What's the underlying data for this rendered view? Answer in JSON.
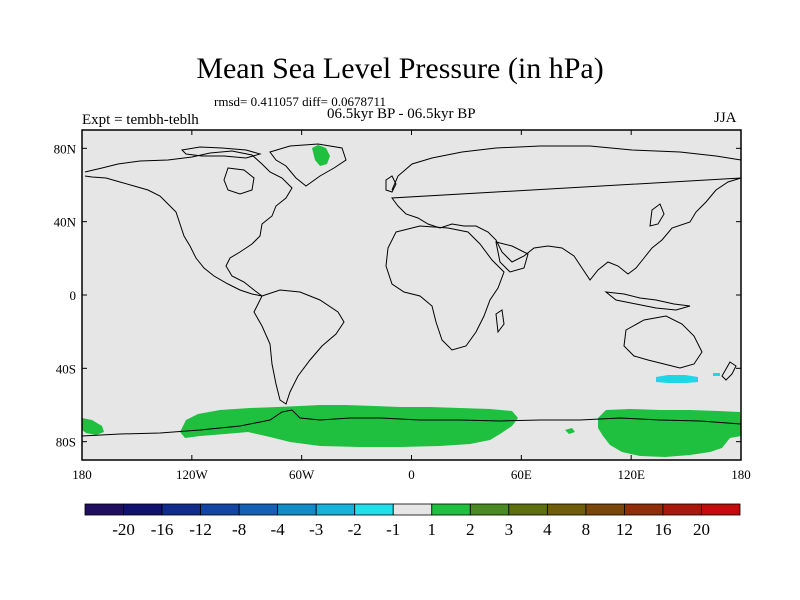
{
  "header": {
    "title": "Mean Sea Level Pressure (in hPa)",
    "stats": "rmsd= 0.411057 diff= 0.0678711",
    "experiment": "Expt = tembh-teblh",
    "period": "06.5kyr BP - 06.5kyr BP",
    "season": "JJA"
  },
  "map": {
    "projection": "cylindrical equidistant",
    "lon_range": [
      -180,
      180
    ],
    "lat_range": [
      -90,
      90
    ],
    "background_color": "#e6e6e6",
    "coastline_color": "#000000",
    "x_ticks": [
      {
        "lon": -180,
        "label": "180"
      },
      {
        "lon": -120,
        "label": "120W"
      },
      {
        "lon": -60,
        "label": "60W"
      },
      {
        "lon": 0,
        "label": "0"
      },
      {
        "lon": 60,
        "label": "60E"
      },
      {
        "lon": 120,
        "label": "120E"
      },
      {
        "lon": 180,
        "label": "180"
      }
    ],
    "y_ticks": [
      {
        "lat": 80,
        "label": "80N"
      },
      {
        "lat": 40,
        "label": "40N"
      },
      {
        "lat": 0,
        "label": "0"
      },
      {
        "lat": -40,
        "label": "40S"
      },
      {
        "lat": -80,
        "label": "80S"
      }
    ],
    "shaded_regions": [
      {
        "name": "greenland-anomaly",
        "bin": "1 to 2",
        "color": "#1fbf40"
      },
      {
        "name": "antarctic-anomaly-west",
        "bin": "1 to 2",
        "color": "#1fbf40"
      },
      {
        "name": "antarctic-anomaly-east",
        "bin": "1 to 2",
        "color": "#1fbf40"
      },
      {
        "name": "southern-ocean-anomaly",
        "bin": "-2 to -1",
        "color": "#22d5e6"
      }
    ]
  },
  "colorbar": {
    "colors": [
      "#200f5e",
      "#10126e",
      "#122c8c",
      "#1346a3",
      "#1261b4",
      "#128cc6",
      "#16b2da",
      "#1fdfea",
      "#e6e6e6",
      "#1fbf40",
      "#4a8a22",
      "#5e6f10",
      "#6f5d0a",
      "#7a4609",
      "#8e2f0a",
      "#a8190c",
      "#c40c0c"
    ],
    "labels": [
      "-20",
      "-16",
      "-12",
      "-8",
      "-4",
      "-3",
      "-2",
      "-1",
      "1",
      "2",
      "3",
      "4",
      "8",
      "12",
      "16",
      "20"
    ]
  }
}
